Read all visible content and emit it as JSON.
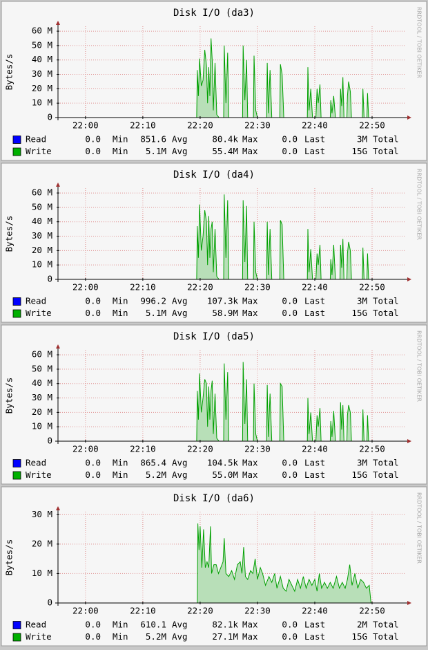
{
  "chart_data": [
    {
      "type": "area",
      "title": "Disk I/O (da3)",
      "y_label": "Bytes/s",
      "watermark": "RRDTOOL / TOBI OETIKER",
      "grid": true,
      "xlim": [
        -4.8,
        55.9
      ],
      "xticks": [
        {
          "value": 0,
          "label": "22:00"
        },
        {
          "value": 10,
          "label": "22:10"
        },
        {
          "value": 20,
          "label": "22:20"
        },
        {
          "value": 30,
          "label": "22:30"
        },
        {
          "value": 40,
          "label": "22:40"
        },
        {
          "value": 50,
          "label": "22:50"
        }
      ],
      "ylim": [
        0,
        63.4
      ],
      "yticks": [
        0,
        {
          "value": 10,
          "label": "10 M"
        },
        {
          "value": 20,
          "label": "20 M"
        },
        {
          "value": 30,
          "label": "30 M"
        },
        {
          "value": 40,
          "label": "40 M"
        },
        {
          "value": 50,
          "label": "50 M"
        },
        {
          "value": 60,
          "label": "60 M"
        }
      ],
      "x": [
        -4.8,
        19.4,
        19.5,
        19.7,
        19.9,
        20.2,
        20.5,
        20.8,
        21.1,
        21.3,
        21.5,
        21.7,
        21.9,
        22.1,
        22.3,
        22.6,
        22.9,
        23.3,
        24.1,
        24.2,
        24.5,
        24.8,
        25.0,
        27.4,
        27.5,
        27.8,
        28.1,
        28.3,
        29.3,
        29.4,
        29.7,
        30.0,
        31.6,
        31.7,
        31.9,
        32.2,
        32.5,
        33.9,
        34.0,
        34.3,
        34.6,
        38.7,
        38.8,
        39.0,
        39.3,
        39.6,
        40.2,
        40.4,
        40.6,
        40.9,
        41.1,
        42.7,
        42.8,
        43.0,
        43.3,
        43.6,
        44.4,
        44.5,
        44.7,
        44.9,
        45.1,
        45.6,
        45.7,
        45.9,
        46.2,
        46.4,
        48.3,
        48.4,
        48.6,
        49.1,
        49.2,
        49.4,
        55.9
      ],
      "series": [
        {
          "name": "Read",
          "color": "#0000ff",
          "x": [
            -4.8,
            55.9
          ],
          "values": [
            0,
            0
          ],
          "stats": [
            "0.0",
            "Min",
            "851.6",
            "Avg",
            "80.4k",
            "Max",
            "0.0",
            "Last",
            "3M",
            "Total"
          ]
        },
        {
          "name": "Write",
          "color": "#00b000",
          "line_color": "#00a000",
          "fill": "#b8dfb8",
          "values": [
            0,
            0,
            33,
            15,
            41,
            22,
            26,
            47,
            36,
            10,
            35,
            15,
            55,
            40,
            5,
            38,
            2,
            0,
            0,
            50,
            10,
            45,
            0,
            0,
            50,
            12,
            40,
            0,
            0,
            43,
            5,
            0,
            0,
            38,
            3,
            33,
            0,
            0,
            37,
            30,
            0,
            0,
            35,
            5,
            20,
            0,
            0,
            20,
            10,
            23,
            0,
            0,
            12,
            3,
            15,
            0,
            0,
            20,
            8,
            28,
            0,
            0,
            15,
            25,
            18,
            0,
            0,
            20,
            0,
            0,
            17,
            0,
            0
          ],
          "stats": [
            "0.0",
            "Min",
            "5.1M",
            "Avg",
            "55.4M",
            "Max",
            "0.0",
            "Last",
            "15G",
            "Total"
          ]
        }
      ]
    },
    {
      "type": "area",
      "title": "Disk I/O (da4)",
      "y_label": "Bytes/s",
      "watermark": "RRDTOOL / TOBI OETIKER",
      "grid": true,
      "xlim": [
        -4.8,
        55.9
      ],
      "xticks": [
        {
          "value": 0,
          "label": "22:00"
        },
        {
          "value": 10,
          "label": "22:10"
        },
        {
          "value": 20,
          "label": "22:20"
        },
        {
          "value": 30,
          "label": "22:30"
        },
        {
          "value": 40,
          "label": "22:40"
        },
        {
          "value": 50,
          "label": "22:50"
        }
      ],
      "ylim": [
        0,
        63.4
      ],
      "yticks": [
        0,
        {
          "value": 10,
          "label": "10 M"
        },
        {
          "value": 20,
          "label": "20 M"
        },
        {
          "value": 30,
          "label": "30 M"
        },
        {
          "value": 40,
          "label": "40 M"
        },
        {
          "value": 50,
          "label": "50 M"
        },
        {
          "value": 60,
          "label": "60 M"
        }
      ],
      "x": [
        -4.8,
        19.4,
        19.5,
        19.7,
        19.9,
        20.2,
        20.5,
        20.8,
        21.1,
        21.3,
        21.5,
        21.7,
        21.9,
        22.1,
        22.3,
        22.6,
        22.9,
        23.3,
        24.1,
        24.2,
        24.5,
        24.8,
        25.0,
        27.4,
        27.5,
        27.8,
        28.1,
        28.3,
        29.3,
        29.4,
        29.7,
        30.0,
        31.6,
        31.7,
        31.9,
        32.2,
        32.5,
        33.9,
        34.0,
        34.3,
        34.6,
        38.7,
        38.8,
        39.0,
        39.3,
        39.6,
        40.2,
        40.4,
        40.6,
        40.9,
        41.1,
        42.7,
        42.8,
        43.0,
        43.3,
        43.6,
        44.4,
        44.5,
        44.7,
        44.9,
        45.1,
        45.6,
        45.7,
        45.9,
        46.2,
        46.4,
        48.3,
        48.4,
        48.6,
        49.1,
        49.2,
        49.4,
        55.9
      ],
      "series": [
        {
          "name": "Read",
          "color": "#0000ff",
          "x": [
            -4.8,
            55.9
          ],
          "values": [
            0,
            0
          ],
          "stats": [
            "0.0",
            "Min",
            "996.2",
            "Avg",
            "107.3k",
            "Max",
            "0.0",
            "Last",
            "3M",
            "Total"
          ]
        },
        {
          "name": "Write",
          "color": "#00b000",
          "line_color": "#00a000",
          "fill": "#b8dfb8",
          "values": [
            0,
            0,
            37,
            15,
            52,
            20,
            30,
            48,
            40,
            10,
            44,
            15,
            35,
            40,
            5,
            35,
            2,
            0,
            0,
            59,
            15,
            55,
            0,
            0,
            55,
            12,
            51,
            0,
            0,
            40,
            5,
            0,
            0,
            40,
            3,
            35,
            0,
            0,
            41,
            38,
            0,
            0,
            35,
            5,
            21,
            0,
            0,
            18,
            10,
            24,
            0,
            0,
            14,
            3,
            24,
            0,
            0,
            24,
            8,
            28,
            0,
            0,
            18,
            26,
            20,
            0,
            0,
            22,
            0,
            0,
            18,
            0,
            0
          ],
          "stats": [
            "0.0",
            "Min",
            "5.1M",
            "Avg",
            "58.9M",
            "Max",
            "0.0",
            "Last",
            "15G",
            "Total"
          ]
        }
      ]
    },
    {
      "type": "area",
      "title": "Disk I/O (da5)",
      "y_label": "Bytes/s",
      "watermark": "RRDTOOL / TOBI OETIKER",
      "grid": true,
      "xlim": [
        -4.8,
        55.9
      ],
      "xticks": [
        {
          "value": 0,
          "label": "22:00"
        },
        {
          "value": 10,
          "label": "22:10"
        },
        {
          "value": 20,
          "label": "22:20"
        },
        {
          "value": 30,
          "label": "22:30"
        },
        {
          "value": 40,
          "label": "22:40"
        },
        {
          "value": 50,
          "label": "22:50"
        }
      ],
      "ylim": [
        0,
        63.4
      ],
      "yticks": [
        0,
        {
          "value": 10,
          "label": "10 M"
        },
        {
          "value": 20,
          "label": "20 M"
        },
        {
          "value": 30,
          "label": "30 M"
        },
        {
          "value": 40,
          "label": "40 M"
        },
        {
          "value": 50,
          "label": "50 M"
        },
        {
          "value": 60,
          "label": "60 M"
        }
      ],
      "x": [
        -4.8,
        19.4,
        19.5,
        19.7,
        19.9,
        20.2,
        20.5,
        20.8,
        21.1,
        21.3,
        21.5,
        21.7,
        21.9,
        22.1,
        22.3,
        22.6,
        22.9,
        23.3,
        24.1,
        24.2,
        24.5,
        24.8,
        25.0,
        27.4,
        27.5,
        27.8,
        28.1,
        28.3,
        29.3,
        29.4,
        29.7,
        30.0,
        31.6,
        31.7,
        31.9,
        32.2,
        32.5,
        33.9,
        34.0,
        34.3,
        34.6,
        38.7,
        38.8,
        39.0,
        39.3,
        39.6,
        40.2,
        40.4,
        40.6,
        40.9,
        41.1,
        42.7,
        42.8,
        43.0,
        43.3,
        43.6,
        44.4,
        44.5,
        44.7,
        44.9,
        45.1,
        45.6,
        45.7,
        45.9,
        46.2,
        46.4,
        48.3,
        48.4,
        48.6,
        49.1,
        49.2,
        49.4,
        55.9
      ],
      "series": [
        {
          "name": "Read",
          "color": "#0000ff",
          "x": [
            -4.8,
            55.9
          ],
          "values": [
            0,
            0
          ],
          "stats": [
            "0.0",
            "Min",
            "865.4",
            "Avg",
            "104.5k",
            "Max",
            "0.0",
            "Last",
            "3M",
            "Total"
          ]
        },
        {
          "name": "Write",
          "color": "#00b000",
          "line_color": "#00a000",
          "fill": "#b8dfb8",
          "values": [
            0,
            0,
            35,
            15,
            47,
            20,
            30,
            43,
            40,
            10,
            38,
            15,
            35,
            42,
            5,
            33,
            2,
            0,
            0,
            54,
            15,
            48,
            0,
            0,
            55,
            12,
            43,
            0,
            0,
            40,
            5,
            0,
            0,
            39,
            3,
            33,
            0,
            0,
            40,
            38,
            0,
            0,
            30,
            5,
            20,
            0,
            0,
            18,
            10,
            23,
            0,
            0,
            14,
            3,
            21,
            0,
            0,
            27,
            8,
            25,
            0,
            0,
            18,
            25,
            20,
            0,
            0,
            22,
            0,
            0,
            18,
            0,
            0
          ],
          "stats": [
            "0.0",
            "Min",
            "5.2M",
            "Avg",
            "55.0M",
            "Max",
            "0.0",
            "Last",
            "15G",
            "Total"
          ]
        }
      ]
    },
    {
      "type": "area",
      "title": "Disk I/O (da6)",
      "y_label": "Bytes/s",
      "watermark": "RRDTOOL / TOBI OETIKER",
      "grid": true,
      "xlim": [
        -4.8,
        55.9
      ],
      "xticks": [
        {
          "value": 0,
          "label": "22:00"
        },
        {
          "value": 10,
          "label": "22:10"
        },
        {
          "value": 20,
          "label": "22:20"
        },
        {
          "value": 30,
          "label": "22:30"
        },
        {
          "value": 40,
          "label": "22:40"
        },
        {
          "value": 50,
          "label": "22:50"
        }
      ],
      "ylim": [
        0,
        31
      ],
      "yticks": [
        0,
        {
          "value": 10,
          "label": "10 M"
        },
        {
          "value": 20,
          "label": "20 M"
        },
        {
          "value": 30,
          "label": "30 M"
        }
      ],
      "x": [
        -4.8,
        19.5,
        19.6,
        19.8,
        20.0,
        20.3,
        20.6,
        20.9,
        21.2,
        21.5,
        21.8,
        22.0,
        22.4,
        22.8,
        23.2,
        23.6,
        24.0,
        24.2,
        24.5,
        25.0,
        25.5,
        26.0,
        26.5,
        27.0,
        27.3,
        27.6,
        27.9,
        28.3,
        28.8,
        29.2,
        29.6,
        30.0,
        30.5,
        30.9,
        31.4,
        32.0,
        32.5,
        33.0,
        33.4,
        34.0,
        34.5,
        35.0,
        35.5,
        36.0,
        36.5,
        37.0,
        37.5,
        38.0,
        38.5,
        39.0,
        39.5,
        40.0,
        40.4,
        40.8,
        41.2,
        41.7,
        42.2,
        42.7,
        43.2,
        43.8,
        44.3,
        44.8,
        45.3,
        45.7,
        46.1,
        46.5,
        47.0,
        47.5,
        48.0,
        48.5,
        49.0,
        49.5,
        49.8,
        55.9
      ],
      "series": [
        {
          "name": "Read",
          "color": "#0000ff",
          "x": [
            -4.8,
            55.9
          ],
          "values": [
            0,
            0
          ],
          "stats": [
            "0.0",
            "Min",
            "610.1",
            "Avg",
            "82.1k",
            "Max",
            "0.0",
            "Last",
            "2M",
            "Total"
          ]
        },
        {
          "name": "Write",
          "color": "#00b000",
          "line_color": "#00a000",
          "fill": "#b8dfb8",
          "values": [
            0,
            0,
            27,
            18,
            26,
            12,
            25,
            12,
            14,
            12,
            26,
            10,
            13,
            13,
            10,
            12,
            14,
            22,
            10,
            9,
            11,
            8,
            13,
            14,
            10,
            19,
            9,
            8,
            11,
            10,
            15,
            8,
            12,
            10,
            6,
            9,
            7,
            10,
            5,
            9,
            5,
            4,
            8,
            6,
            4,
            8,
            5,
            9,
            5,
            8,
            6,
            8,
            4,
            10,
            5,
            7,
            5,
            7,
            5,
            9,
            5,
            7,
            5,
            8,
            13,
            6,
            10,
            5,
            8,
            7,
            5,
            6,
            0,
            0
          ],
          "stats": [
            "0.0",
            "Min",
            "5.2M",
            "Avg",
            "27.1M",
            "Max",
            "0.0",
            "Last",
            "15G",
            "Total"
          ]
        }
      ]
    }
  ]
}
